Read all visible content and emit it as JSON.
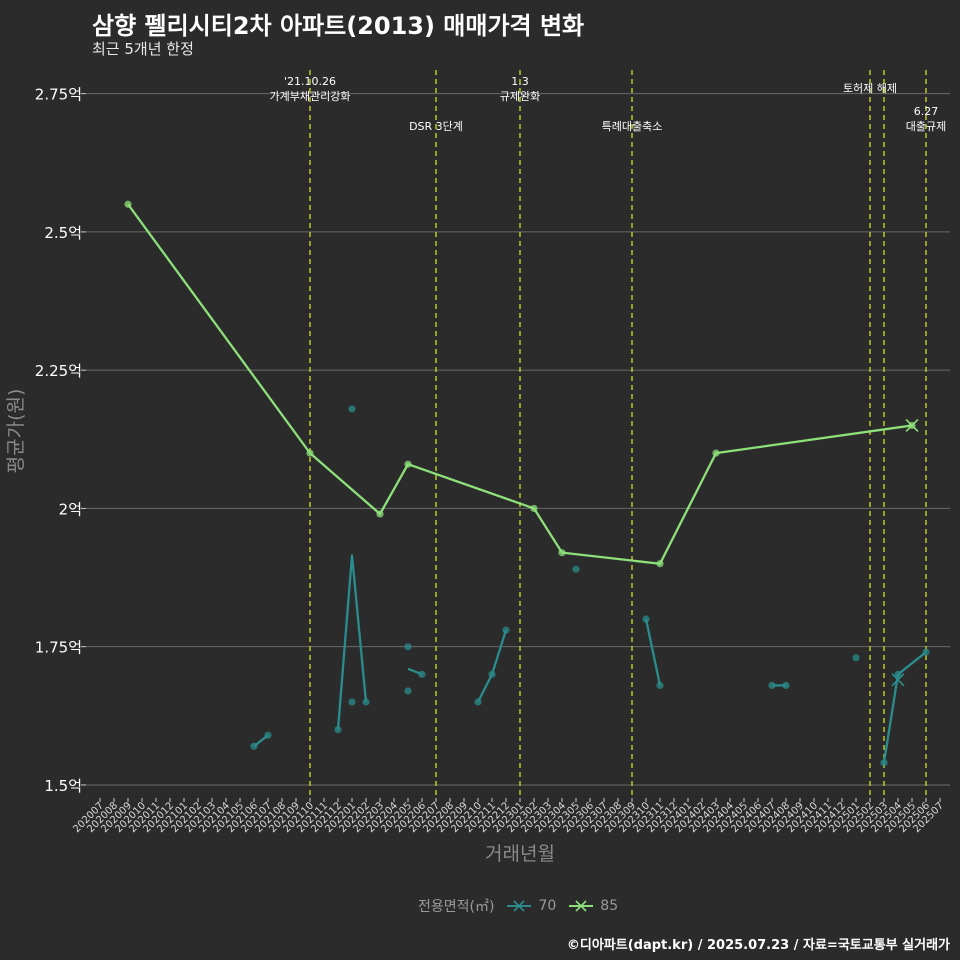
{
  "chart_data": {
    "type": "line",
    "title": "삼향 펠리시티2차 아파트(2013) 매매가격 변화",
    "subtitle": "최근 5개년 한정",
    "xlabel": "거래년월",
    "ylabel": "평균가(원)",
    "ylim": [
      1.48,
      2.8
    ],
    "yticks": [
      {
        "value": 1.5,
        "label": "1.5억"
      },
      {
        "value": 1.75,
        "label": "1.75억"
      },
      {
        "value": 2.0,
        "label": "2억"
      },
      {
        "value": 2.25,
        "label": "2.25억"
      },
      {
        "value": 2.5,
        "label": "2.5억"
      },
      {
        "value": 2.75,
        "label": "2.75억"
      }
    ],
    "categories": [
      "202007",
      "202008",
      "202009",
      "202010",
      "202011",
      "202012",
      "202101",
      "202102",
      "202103",
      "202104",
      "202105",
      "202106",
      "202107",
      "202108",
      "202109",
      "202110",
      "202111",
      "202112",
      "202201",
      "202202",
      "202203",
      "202204",
      "202205",
      "202206",
      "202207",
      "202208",
      "202209",
      "202210",
      "202211",
      "202212",
      "202301",
      "202302",
      "202303",
      "202304",
      "202305",
      "202306",
      "202307",
      "202308",
      "202309",
      "202310",
      "202311",
      "202312",
      "202401",
      "202402",
      "202403",
      "202404",
      "202405",
      "202406",
      "202407",
      "202408",
      "202409",
      "202410",
      "202411",
      "202412",
      "202501",
      "202502",
      "202503",
      "202504",
      "202505",
      "202506",
      "202507"
    ],
    "grid": true,
    "legend": {
      "title": "전용면적(㎡)",
      "position": "bottom"
    },
    "events": [
      {
        "x": "202110",
        "label": "'21.10.26\n가계부채관리강화",
        "level": 0
      },
      {
        "x": "202207",
        "label": "DSR 3단계",
        "level": 1
      },
      {
        "x": "202301",
        "label": "1.3\n규제완화",
        "level": 0
      },
      {
        "x": "202309",
        "label": "특례대출축소",
        "level": 1
      },
      {
        "x": "202502",
        "label": "토허제 해제",
        "level": 0
      },
      {
        "x": "202503",
        "label": "",
        "level": 0
      },
      {
        "x": "202506",
        "label": "6.27\n대출규제",
        "level": 2
      }
    ],
    "series": [
      {
        "name": "70",
        "color": "#2a8c8c",
        "line": [
          {
            "x": "202106",
            "y": 1.57
          },
          {
            "x": "202107",
            "y": 1.59
          },
          null,
          {
            "x": "202112",
            "y": 1.6
          },
          {
            "x": "202201",
            "y": 1.915
          },
          {
            "x": "202202",
            "y": 1.65
          },
          null,
          {
            "x": "202205",
            "y": 1.71
          },
          {
            "x": "202206",
            "y": 1.7
          },
          null,
          {
            "x": "202210",
            "y": 1.65
          },
          {
            "x": "202211",
            "y": 1.7
          },
          {
            "x": "202212",
            "y": 1.78
          },
          null,
          {
            "x": "202310",
            "y": 1.8
          },
          {
            "x": "202311",
            "y": 1.68
          },
          null,
          {
            "x": "202407",
            "y": 1.68
          },
          {
            "x": "202408",
            "y": 1.68
          },
          null,
          {
            "x": "202503",
            "y": 1.54
          },
          {
            "x": "202504",
            "y": 1.7
          },
          {
            "x": "202506",
            "y": 1.74
          }
        ],
        "points": [
          {
            "x": "202106",
            "y": 1.57
          },
          {
            "x": "202107",
            "y": 1.59
          },
          {
            "x": "202112",
            "y": 1.6
          },
          {
            "x": "202201",
            "y": 2.18
          },
          {
            "x": "202201",
            "y": 1.65
          },
          {
            "x": "202202",
            "y": 1.65
          },
          {
            "x": "202205",
            "y": 1.75
          },
          {
            "x": "202205",
            "y": 1.67
          },
          {
            "x": "202206",
            "y": 1.7
          },
          {
            "x": "202210",
            "y": 1.65
          },
          {
            "x": "202211",
            "y": 1.7
          },
          {
            "x": "202212",
            "y": 1.78
          },
          {
            "x": "202305",
            "y": 1.89
          },
          {
            "x": "202310",
            "y": 1.8
          },
          {
            "x": "202311",
            "y": 1.68
          },
          {
            "x": "202407",
            "y": 1.68
          },
          {
            "x": "202408",
            "y": 1.68
          },
          {
            "x": "202501",
            "y": 1.73
          },
          {
            "x": "202503",
            "y": 1.54
          },
          {
            "x": "202504",
            "y": 1.7
          },
          {
            "x": "202506",
            "y": 1.74
          }
        ],
        "crosses": [
          {
            "x": "202504",
            "y": 1.69
          }
        ]
      },
      {
        "name": "85",
        "color": "#8ee07a",
        "line": [
          {
            "x": "202009",
            "y": 2.55
          },
          {
            "x": "202110",
            "y": 2.1
          },
          {
            "x": "202203",
            "y": 1.99
          },
          {
            "x": "202205",
            "y": 2.08
          },
          {
            "x": "202302",
            "y": 2.0
          },
          {
            "x": "202304",
            "y": 1.92
          },
          {
            "x": "202311",
            "y": 1.9
          },
          {
            "x": "202403",
            "y": 2.1
          },
          {
            "x": "202505",
            "y": 2.15
          }
        ],
        "points": [
          {
            "x": "202009",
            "y": 2.55
          },
          {
            "x": "202110",
            "y": 2.1
          },
          {
            "x": "202203",
            "y": 1.99
          },
          {
            "x": "202205",
            "y": 2.08
          },
          {
            "x": "202302",
            "y": 2.0
          },
          {
            "x": "202304",
            "y": 1.92
          },
          {
            "x": "202311",
            "y": 1.9
          },
          {
            "x": "202403",
            "y": 2.1
          },
          {
            "x": "202505",
            "y": 2.15
          }
        ],
        "crosses": [
          {
            "x": "202505",
            "y": 2.15
          }
        ]
      }
    ]
  },
  "caption": "©디아파트(dapt.kr) / 2025.07.23 / 자료=국토교통부 실거래가"
}
